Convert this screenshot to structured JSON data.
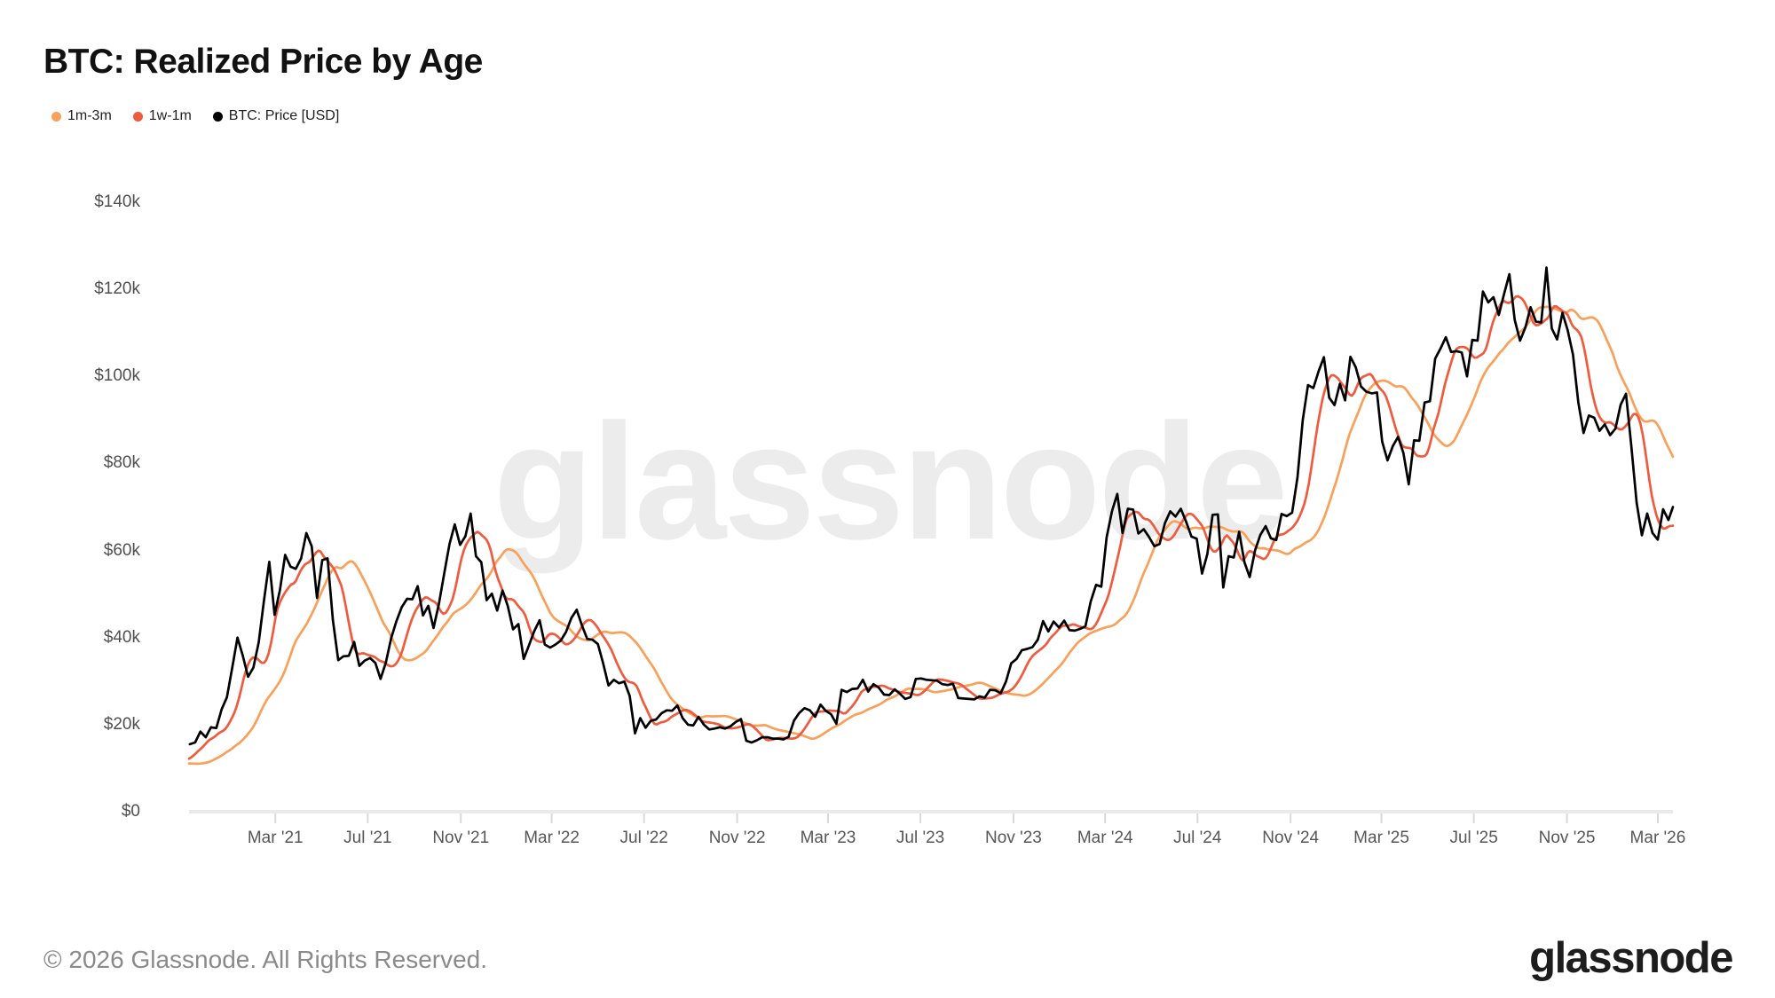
{
  "header": {
    "title": "BTC: Realized Price by Age"
  },
  "legend": [
    {
      "label": "1m-3m",
      "color": "#F9A05A"
    },
    {
      "label": "1w-1m",
      "color": "#EF5B3E"
    },
    {
      "label": "BTC: Price [USD]",
      "color": "#000000"
    }
  ],
  "watermark": {
    "text": "glassnode"
  },
  "footer": {
    "copyright": "© 2026 Glassnode. All Rights Reserved.",
    "logo_text": "glassnode"
  },
  "chart_data": {
    "type": "line",
    "title": "BTC: Realized Price by Age",
    "grid": false,
    "legend_position": "top-left",
    "y_axis": {
      "unit": "USD",
      "range": [
        0,
        140000
      ],
      "ticks": [
        {
          "label": "$0",
          "value": 0
        },
        {
          "label": "$20k",
          "value": 20000
        },
        {
          "label": "$40k",
          "value": 40000
        },
        {
          "label": "$60k",
          "value": 60000
        },
        {
          "label": "$80k",
          "value": 80000
        },
        {
          "label": "$100k",
          "value": 100000
        },
        {
          "label": "$120k",
          "value": 120000
        },
        {
          "label": "$140k",
          "value": 140000
        }
      ]
    },
    "x_axis": {
      "range": [
        "2020-11-07",
        "2026-03-21"
      ],
      "ticks": [
        {
          "label": "Mar '21",
          "date": "2021-03-01"
        },
        {
          "label": "Jul '21",
          "date": "2021-07-01"
        },
        {
          "label": "Nov '21",
          "date": "2021-11-01"
        },
        {
          "label": "Mar '22",
          "date": "2022-03-01"
        },
        {
          "label": "Jul '22",
          "date": "2022-07-01"
        },
        {
          "label": "Nov '22",
          "date": "2022-11-01"
        },
        {
          "label": "Mar '23",
          "date": "2023-03-01"
        },
        {
          "label": "Jul '23",
          "date": "2023-07-01"
        },
        {
          "label": "Nov '23",
          "date": "2023-11-01"
        },
        {
          "label": "Mar '24",
          "date": "2024-03-01"
        },
        {
          "label": "Jul '24",
          "date": "2024-07-01"
        },
        {
          "label": "Nov '24",
          "date": "2024-11-01"
        },
        {
          "label": "Mar '25",
          "date": "2025-03-01"
        },
        {
          "label": "Jul '25",
          "date": "2025-07-01"
        },
        {
          "label": "Nov '25",
          "date": "2025-11-01"
        },
        {
          "label": "Mar '26",
          "date": "2026-03-01"
        }
      ]
    },
    "series": [
      {
        "name": "1m-3m",
        "color": "#F9A05A",
        "derived": {
          "from": "BTC: Price [USD]",
          "method": "trailing_mean",
          "window_days_prior": [
            30,
            90
          ]
        }
      },
      {
        "name": "1w-1m",
        "color": "#EF5B3E",
        "derived": {
          "from": "BTC: Price [USD]",
          "method": "trailing_mean",
          "window_days_prior": [
            7,
            30
          ]
        }
      },
      {
        "name": "BTC: Price [USD]",
        "color": "#000000",
        "unit": "USD_thousands",
        "start_date": "2020-08-02",
        "step_days": 7,
        "values": [
          11.1,
          11.7,
          11.9,
          11.6,
          11.7,
          10.3,
          10.4,
          10.9,
          10.8,
          10.7,
          11.4,
          11.5,
          13.0,
          13.7,
          15.5,
          15.9,
          18.4,
          17.1,
          19.4,
          19.2,
          23.5,
          26.3,
          33.0,
          40.0,
          35.8,
          31.0,
          33.1,
          38.9,
          48.6,
          57.4,
          45.2,
          50.9,
          59.0,
          56.3,
          55.8,
          58.2,
          64.0,
          61.0,
          49.1,
          57.8,
          58.2,
          44.0,
          34.8,
          35.7,
          35.8,
          39.0,
          33.5,
          34.7,
          35.3,
          34.2,
          30.5,
          34.3,
          39.9,
          43.8,
          47.0,
          48.9,
          48.8,
          51.8,
          45.1,
          47.3,
          42.2,
          47.7,
          54.7,
          61.5,
          66.0,
          61.3,
          63.3,
          68.5,
          58.7,
          57.3,
          48.6,
          50.1,
          46.2,
          50.8,
          47.3,
          41.9,
          43.1,
          35.1,
          38.2,
          41.5,
          44.0,
          38.4,
          37.7,
          38.4,
          39.3,
          41.3,
          44.5,
          46.4,
          42.8,
          39.7,
          39.5,
          38.5,
          34.1,
          29.0,
          30.3,
          29.5,
          29.9,
          26.6,
          18.0,
          21.5,
          19.3,
          20.9,
          21.2,
          22.6,
          23.3,
          23.2,
          24.4,
          21.5,
          20.0,
          19.8,
          21.8,
          20.0,
          18.9,
          19.1,
          19.4,
          19.1,
          19.6,
          20.6,
          21.3,
          16.3,
          15.9,
          16.4,
          17.1,
          17.1,
          16.8,
          16.8,
          16.6,
          17.2,
          20.9,
          22.7,
          23.8,
          23.3,
          21.8,
          24.6,
          23.2,
          22.4,
          20.2,
          28.0,
          27.5,
          28.2,
          28.3,
          30.3,
          27.6,
          29.3,
          28.5,
          26.9,
          26.8,
          28.1,
          27.1,
          25.9,
          26.3,
          30.5,
          30.6,
          30.3,
          30.2,
          30.1,
          29.3,
          29.1,
          29.4,
          26.1,
          26.0,
          25.9,
          25.8,
          26.5,
          26.2,
          28.0,
          27.9,
          27.2,
          29.9,
          34.1,
          35.1,
          37.1,
          37.4,
          37.8,
          39.5,
          43.8,
          41.4,
          43.7,
          42.3,
          43.9,
          41.7,
          41.6,
          42.0,
          42.6,
          48.3,
          52.1,
          51.7,
          63.0,
          69.0,
          73.0,
          64.0,
          69.6,
          69.4,
          63.9,
          64.9,
          63.1,
          61.0,
          61.5,
          66.3,
          69.0,
          67.8,
          69.6,
          66.6,
          63.2,
          62.7,
          54.7,
          59.2,
          68.2,
          68.3,
          51.5,
          58.7,
          58.4,
          64.3,
          57.3,
          53.9,
          60.0,
          63.6,
          65.6,
          62.8,
          62.4,
          68.4,
          67.9,
          68.7,
          76.7,
          90.0,
          98.0,
          97.3,
          101.2,
          104.4,
          95.1,
          93.4,
          98.3,
          94.5,
          104.5,
          102.1,
          97.7,
          96.5,
          96.1,
          96.3,
          85.0,
          80.7,
          84.0,
          86.1,
          82.4,
          75.2,
          85.3,
          85.2,
          94.0,
          94.3,
          104.1,
          106.4,
          109.0,
          105.6,
          105.8,
          105.5,
          100.0,
          108.4,
          108.2,
          119.5,
          117.0,
          118.2,
          114.1,
          119.0,
          123.5,
          113.0,
          108.2,
          111.2,
          115.9,
          112.6,
          112.4,
          125.0,
          111.0,
          108.5,
          114.6,
          110.6,
          105.0,
          94.0,
          87.0,
          91.0,
          90.5,
          87.5,
          89.0,
          86.5,
          88.0,
          93.5,
          96.0,
          84.0,
          71.0,
          63.5,
          68.5,
          64.0,
          62.5,
          69.5,
          67.0,
          70.5
        ]
      }
    ]
  }
}
